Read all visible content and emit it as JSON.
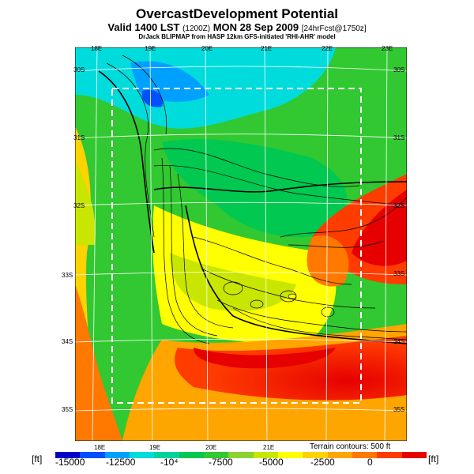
{
  "header": {
    "title": "OvercastDevelopment Potential",
    "valid_prefix": "Valid 1400 LST",
    "valid_z": "(1200Z)",
    "valid_date": "MON 28 Sep 2009",
    "valid_forecast": "[24hrFcst@1750z]",
    "source": "DrJack BLIPMAP from HASP 12km GFS-initiated 'RHI-AHR' model"
  },
  "map": {
    "top_lon_labels": [
      "18E",
      "19E",
      "20E",
      "21E",
      "22E",
      "23E"
    ],
    "bottom_lon_labels": [
      "18E",
      "19E",
      "20E",
      "21E"
    ],
    "left_lat_labels": [
      "30S",
      "31S",
      "32S",
      "33S",
      "34S",
      "35S"
    ],
    "right_lat_labels": [
      "30S",
      "31S",
      "32S",
      "33S",
      "34S",
      "35S"
    ],
    "terrain_note": "Terrain contours: 500 ft"
  },
  "legend": {
    "unit_left": "[ft]",
    "unit_right": "[ft]",
    "ticks": [
      "-15000",
      "-12500",
      "-10⁴",
      "-7500",
      "-5000",
      "-2500",
      "0"
    ],
    "colors": [
      "#0000c8",
      "#0050ff",
      "#00a0ff",
      "#00dcdc",
      "#00d29b",
      "#00c850",
      "#32c832",
      "#8cd232",
      "#c8e600",
      "#ffff00",
      "#ffd200",
      "#ffa500",
      "#ff7800",
      "#ff3c00",
      "#e60000"
    ]
  }
}
